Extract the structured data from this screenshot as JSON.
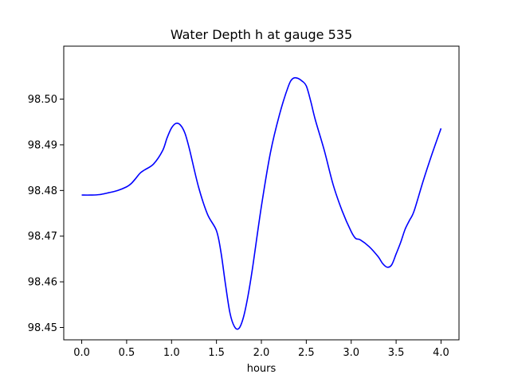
{
  "chart_data": {
    "type": "line",
    "title": "Water Depth h at gauge 535",
    "xlabel": "hours",
    "ylabel": "",
    "xlim": [
      -0.2,
      4.2
    ],
    "ylim": [
      98.4473,
      98.5116
    ],
    "xticks": [
      0.0,
      0.5,
      1.0,
      1.5,
      2.0,
      2.5,
      3.0,
      3.5,
      4.0
    ],
    "xtick_labels": [
      "0.0",
      "0.5",
      "1.0",
      "1.5",
      "2.0",
      "2.5",
      "3.0",
      "3.5",
      "4.0"
    ],
    "yticks": [
      98.45,
      98.46,
      98.47,
      98.48,
      98.49,
      98.5
    ],
    "ytick_labels": [
      "98.45",
      "98.46",
      "98.47",
      "98.48",
      "98.49",
      "98.50"
    ],
    "grid": false,
    "series": [
      {
        "color": "#0000ff",
        "x": [
          0.0,
          0.1,
          0.2,
          0.3,
          0.4,
          0.5,
          0.55,
          0.6,
          0.65,
          0.7,
          0.8,
          0.9,
          0.95,
          1.0,
          1.05,
          1.1,
          1.15,
          1.2,
          1.3,
          1.4,
          1.5,
          1.55,
          1.6,
          1.65,
          1.7,
          1.75,
          1.8,
          1.85,
          1.9,
          2.0,
          2.1,
          2.2,
          2.3,
          2.35,
          2.4,
          2.45,
          2.5,
          2.55,
          2.6,
          2.7,
          2.8,
          2.9,
          3.0,
          3.05,
          3.1,
          3.2,
          3.3,
          3.35,
          3.4,
          3.45,
          3.5,
          3.55,
          3.6,
          3.65,
          3.7,
          3.8,
          3.9,
          4.0
        ],
        "y": [
          98.479,
          98.479,
          98.4791,
          98.4795,
          98.48,
          98.4808,
          98.4815,
          98.4826,
          98.4838,
          98.4845,
          98.4858,
          98.4887,
          98.4915,
          98.4937,
          98.4947,
          98.4943,
          98.4925,
          98.489,
          98.4808,
          98.4748,
          98.4712,
          98.4665,
          98.4595,
          98.4532,
          98.4502,
          98.4498,
          98.4522,
          98.4568,
          98.4628,
          98.4765,
          98.4882,
          98.4965,
          98.5028,
          98.5045,
          98.5046,
          98.504,
          98.5029,
          98.4995,
          98.4955,
          98.4888,
          98.4812,
          98.4755,
          98.471,
          98.4695,
          98.4692,
          98.4677,
          98.4655,
          98.464,
          98.4632,
          98.4637,
          98.4661,
          98.4686,
          98.4715,
          98.4735,
          98.4755,
          98.482,
          98.488,
          98.4936
        ]
      }
    ]
  }
}
